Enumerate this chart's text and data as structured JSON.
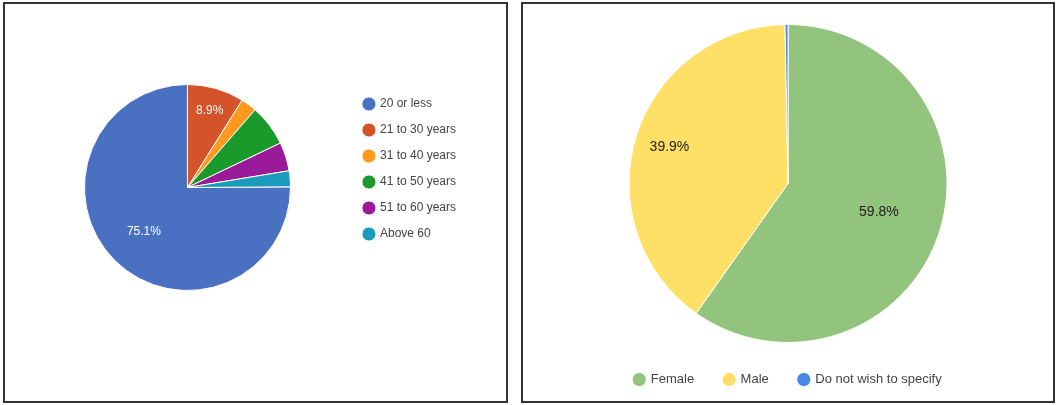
{
  "chart_data": [
    {
      "type": "pie",
      "categories": [
        "20 or less",
        "21 to 30 years",
        "31 to 40 years",
        "41 to 50 years",
        "51 to 60 years",
        "Above 60"
      ],
      "values": [
        75.1,
        8.9,
        2.5,
        6.5,
        4.5,
        2.5
      ],
      "colors": [
        "#4a70c2",
        "#d4532a",
        "#ff9a1f",
        "#1a9a2a",
        "#9a1a9a",
        "#1b9bbb"
      ],
      "value_labels": [
        "75.1%",
        "8.9%",
        null,
        null,
        null,
        null
      ],
      "legend": "right"
    },
    {
      "type": "pie",
      "categories": [
        "Female",
        "Male",
        "Do not wish to specify"
      ],
      "values": [
        59.8,
        39.9,
        0.3
      ],
      "colors": [
        "#93c47d",
        "#ffe066",
        "#4a86e8"
      ],
      "value_labels": [
        "59.8%",
        "39.9%",
        null
      ],
      "legend": "bottom"
    }
  ]
}
